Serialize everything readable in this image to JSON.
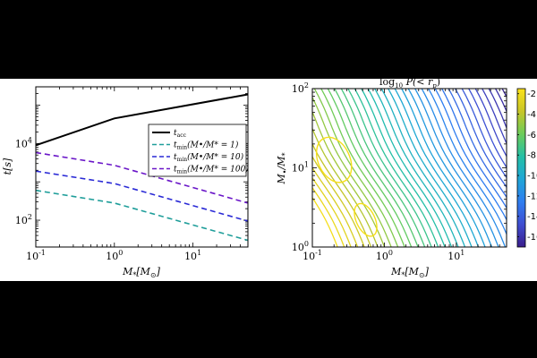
{
  "chart_data": [
    {
      "type": "line",
      "xscale": "log",
      "yscale": "log",
      "xlim": [
        0.1,
        50
      ],
      "ylim": [
        20,
        300000
      ],
      "xlabel": "M*[M⊙]",
      "ylabel": "t[s]",
      "x_tick_labels": [
        {
          "base": "10",
          "exp": "-1",
          "value": 0.1
        },
        {
          "base": "10",
          "exp": "0",
          "value": 1
        },
        {
          "base": "10",
          "exp": "1",
          "value": 10
        }
      ],
      "y_tick_labels": [
        {
          "base": "10",
          "exp": "2",
          "value": 100
        },
        {
          "base": "10",
          "exp": "4",
          "value": 10000
        }
      ],
      "series": [
        {
          "name": "t_acc",
          "label_main": "t",
          "label_sub": "acc",
          "color": "#000000",
          "dash": "solid",
          "x": [
            0.1,
            1,
            50
          ],
          "y": [
            9000,
            45000,
            190000
          ]
        },
        {
          "name": "t_min (M•/M* = 1)",
          "label_main": "t",
          "label_sub": "min",
          "label_rest": "(M•/M* = 1)",
          "color": "#1f9e9a",
          "dash": "dashed",
          "x": [
            0.1,
            1,
            50
          ],
          "y": [
            600,
            280,
            30
          ]
        },
        {
          "name": "t_min (M•/M* = 10)",
          "label_main": "t",
          "label_sub": "min",
          "label_rest": "(M•/M* = 10)",
          "color": "#2a2ad6",
          "dash": "dashed",
          "x": [
            0.1,
            1,
            50
          ],
          "y": [
            1900,
            900,
            95
          ]
        },
        {
          "name": "t_min (M•/M* = 100)",
          "label_main": "t",
          "label_sub": "min",
          "label_rest": "(M•/M* = 100)",
          "color": "#6a16c8",
          "dash": "dashed",
          "x": [
            0.1,
            1,
            50
          ],
          "y": [
            5800,
            2700,
            280
          ]
        }
      ]
    },
    {
      "type": "contour",
      "title": "log10 P(< rp)",
      "xscale": "log",
      "yscale": "log",
      "xlim": [
        0.1,
        50
      ],
      "ylim": [
        1,
        100
      ],
      "xlabel": "M*[M⊙]",
      "ylabel": "M•/M*",
      "x_tick_labels": [
        {
          "base": "10",
          "exp": "-1",
          "value": 0.1
        },
        {
          "base": "10",
          "exp": "0",
          "value": 1
        },
        {
          "base": "10",
          "exp": "1",
          "value": 10
        }
      ],
      "y_tick_labels": [
        {
          "base": "10",
          "exp": "0",
          "value": 1
        },
        {
          "base": "10",
          "exp": "1",
          "value": 10
        },
        {
          "base": "10",
          "exp": "2",
          "value": 100
        }
      ],
      "colorbar": {
        "range": [
          -17,
          -1.5
        ],
        "ticks": [
          -2,
          -4,
          -6,
          -8,
          -10,
          -12,
          -14,
          -16
        ],
        "colormap": [
          "#3a1e8c",
          "#3f4ed1",
          "#2f7ef0",
          "#1fa6d6",
          "#24c0a6",
          "#6ccc5a",
          "#c8c628",
          "#fbe21a"
        ]
      },
      "levels": [
        -1.8,
        -2.2,
        -2.6,
        -3.0,
        -3.4,
        -3.8,
        -4.2,
        -4.6,
        -5.0,
        -5.4,
        -5.8,
        -6.2,
        -6.6,
        -7.0,
        -7.4,
        -7.8,
        -8.2,
        -8.6,
        -9.0,
        -9.4,
        -9.8,
        -10.2,
        -10.6,
        -11.0,
        -11.4,
        -11.8,
        -12.2,
        -12.6,
        -13.0,
        -13.4,
        -13.8,
        -14.2,
        -14.6,
        -15.0,
        -15.4,
        -15.8,
        -16.2,
        -16.6
      ],
      "closed_contours": [
        {
          "value": -1.7,
          "cx": 0.2,
          "cy": 12.6,
          "rx": 0.22,
          "ry": 0.3
        },
        {
          "value": -1.7,
          "cx": 0.55,
          "cy": 2.2,
          "rx": 0.13,
          "ry": 0.22
        }
      ]
    }
  ],
  "legend": {
    "position": "upper-right"
  },
  "labels": {
    "left_xlabel_main": "M",
    "left_xlabel_sub": "*",
    "left_xlabel_unit": "[M",
    "left_xlabel_unit_sub": "⊙",
    "left_xlabel_close": "]",
    "left_ylabel": "t[s]",
    "right_ylabel_main": "M",
    "right_ylabel_sub1": "•",
    "right_ylabel_slash": "/M",
    "right_ylabel_sub2": "*",
    "title_log": "log",
    "title_log_sub": "10",
    "title_rest": " P(< r",
    "title_rest_sub": "p",
    "title_close": ")"
  }
}
